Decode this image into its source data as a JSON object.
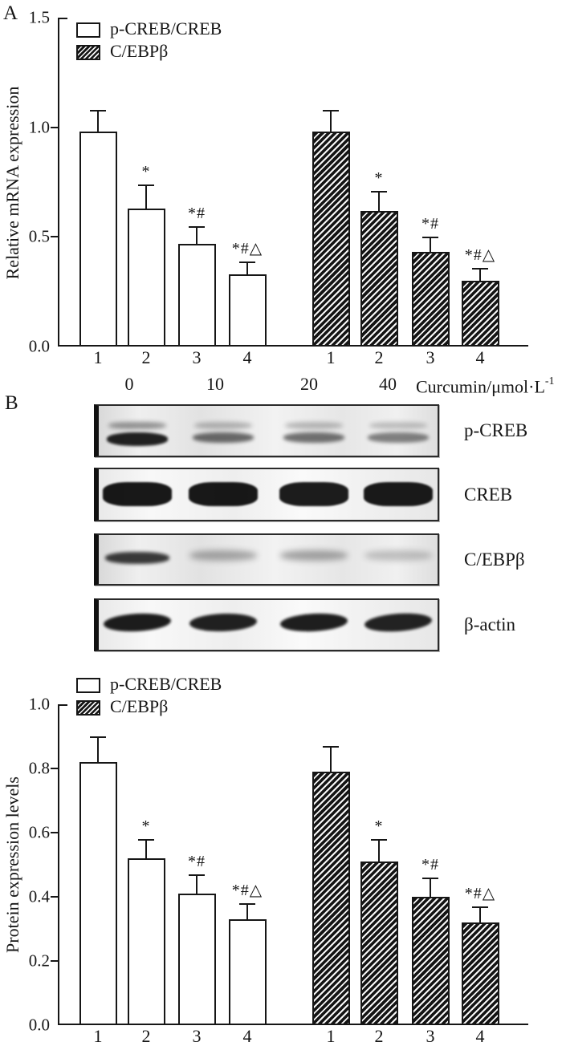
{
  "figure": {
    "panel_a_letter": "A",
    "panel_b_letter": "B"
  },
  "chart_data": [
    {
      "type": "bar",
      "panel": "A",
      "title": "",
      "xlabel": "",
      "ylabel": "Relative mRNA expression",
      "ylim": [
        0,
        1.5
      ],
      "yticks": [
        "0.0",
        "0.5",
        "1.0",
        "1.5"
      ],
      "grid": false,
      "legend_position": "top-left-inside",
      "categories": [
        "1",
        "2",
        "3",
        "4"
      ],
      "series": [
        {
          "name": "p-CREB/CREB",
          "pattern": "open",
          "values": [
            0.98,
            0.63,
            0.47,
            0.33
          ],
          "errors": [
            0.1,
            0.11,
            0.08,
            0.06
          ],
          "sig": [
            "",
            "*",
            "*#",
            "*#△"
          ]
        },
        {
          "name": "C/EBPβ",
          "pattern": "hatch",
          "values": [
            0.98,
            0.62,
            0.43,
            0.3
          ],
          "errors": [
            0.1,
            0.09,
            0.07,
            0.06
          ],
          "sig": [
            "",
            "*",
            "*#",
            "*#△"
          ]
        }
      ],
      "xaxis_note": {
        "concentrations": [
          "0",
          "10",
          "20",
          "40"
        ],
        "label": "Curcumin/μmol·L",
        "label_sup": "-1"
      }
    },
    {
      "type": "bar",
      "panel": "bottom",
      "title": "",
      "xlabel": "",
      "ylabel": "Protein expression levels",
      "ylim": [
        0,
        1.0
      ],
      "yticks": [
        "0.0",
        "0.2",
        "0.4",
        "0.6",
        "0.8",
        "1.0"
      ],
      "grid": false,
      "legend_position": "top-left-inside",
      "categories": [
        "1",
        "2",
        "3",
        "4"
      ],
      "series": [
        {
          "name": "p-CREB/CREB",
          "pattern": "open",
          "values": [
            0.82,
            0.52,
            0.41,
            0.33
          ],
          "errors": [
            0.08,
            0.06,
            0.06,
            0.05
          ],
          "sig": [
            "",
            "*",
            "*#",
            "*#△"
          ]
        },
        {
          "name": "C/EBPβ",
          "pattern": "hatch",
          "values": [
            0.79,
            0.51,
            0.4,
            0.32
          ],
          "errors": [
            0.08,
            0.07,
            0.06,
            0.05
          ],
          "sig": [
            "",
            "*",
            "*#",
            "*#△"
          ]
        }
      ]
    }
  ],
  "legend": {
    "open_label": "p-CREB/CREB",
    "hatch_label": "C/EBPβ"
  },
  "panelB": {
    "blots": [
      {
        "label": "p-CREB",
        "style": "double",
        "lanes": [
          0.93,
          0.6,
          0.57,
          0.5
        ]
      },
      {
        "label": "CREB",
        "style": "thick",
        "lanes": [
          0.97,
          0.97,
          0.95,
          0.96
        ]
      },
      {
        "label": "C/EBPβ",
        "style": "fuzzy",
        "lanes": [
          0.82,
          0.33,
          0.35,
          0.22
        ]
      },
      {
        "label": "β-actin",
        "style": "slant",
        "lanes": [
          0.95,
          0.93,
          0.94,
          0.92
        ]
      }
    ]
  }
}
